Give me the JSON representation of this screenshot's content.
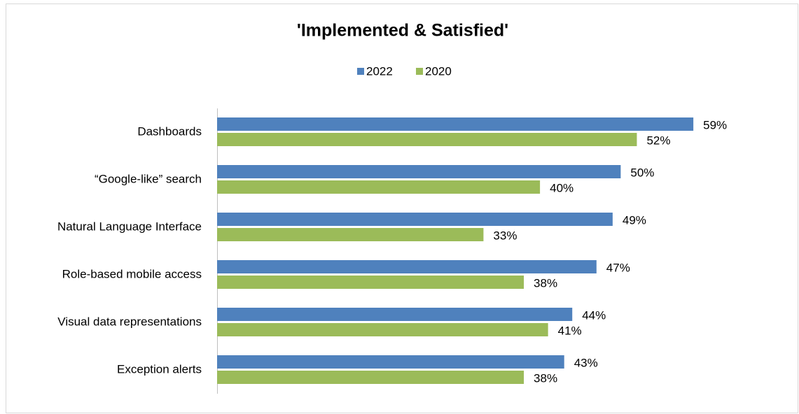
{
  "chart_data": {
    "type": "bar",
    "orientation": "horizontal",
    "title": "'Implemented & Satisfied'",
    "categories": [
      "Dashboards",
      "“Google-like” search",
      "Natural Language Interface",
      "Role-based mobile access",
      "Visual data representations",
      "Exception alerts"
    ],
    "series": [
      {
        "name": "2022",
        "color": "#4f81bd",
        "values": [
          59,
          50,
          49,
          47,
          44,
          43
        ],
        "value_labels": [
          "59%",
          "50%",
          "49%",
          "47%",
          "44%",
          "43%"
        ]
      },
      {
        "name": "2020",
        "color": "#9bbb59",
        "values": [
          52,
          40,
          33,
          38,
          41,
          38
        ],
        "value_labels": [
          "52%",
          "40%",
          "33%",
          "38%",
          "41%",
          "38%"
        ]
      }
    ],
    "xlim": [
      0,
      72
    ],
    "legend": "top"
  }
}
